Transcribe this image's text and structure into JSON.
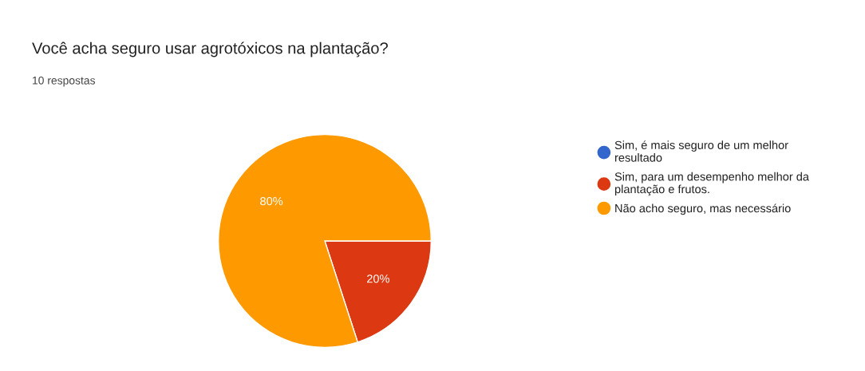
{
  "chart_data": {
    "type": "pie",
    "title": "Você acha seguro usar agrotóxicos na plantação?",
    "subtitle": "10 respostas",
    "categories": [
      "Sim, é mais seguro de um melhor resultado",
      "Sim, para um desempenho melhor da plantação e frutos.",
      "Não acho seguro, mas necessário"
    ],
    "values": [
      0,
      20,
      80
    ],
    "colors": [
      "#3366cc",
      "#dc3912",
      "#ff9900"
    ],
    "value_labels": [
      null,
      "20%",
      "80%"
    ],
    "legend": "right"
  }
}
